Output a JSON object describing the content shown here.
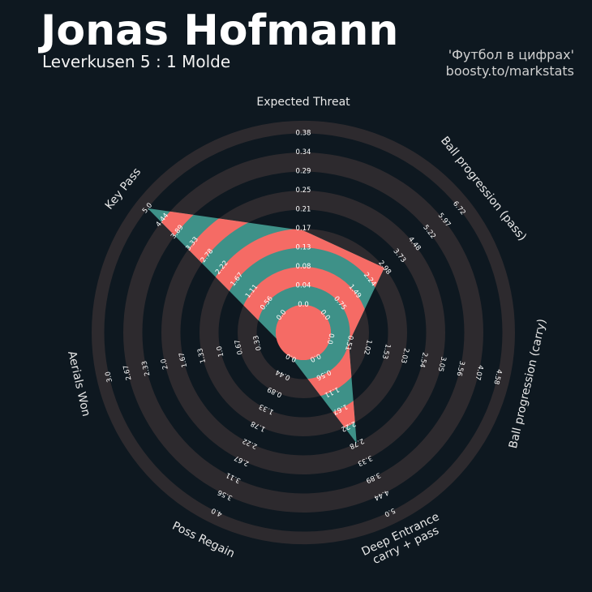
{
  "header": {
    "title": "Jonas Hofmann",
    "subtitle": "Leverkusen 5 : 1 Molde",
    "credit_line1": "'Футбол в цифрах'",
    "credit_line2": "boosty.to/markstats"
  },
  "colors": {
    "background": "#0e1820",
    "ring_band": "#2d2a2e",
    "fill_teal": "#3e9188",
    "fill_coral": "#f56b65",
    "axis_label": "#e8e8e8",
    "tick_label": "#ffffff"
  },
  "chart_data": {
    "type": "radar",
    "title": "",
    "series": [
      {
        "name": "",
        "values": [
          0.165,
          2.98,
          0.51,
          2.78,
          0.0,
          0.0,
          5.0
        ]
      }
    ],
    "axes": [
      {
        "name": "Expected Threat",
        "label_lines": [
          "Expected Threat"
        ],
        "ticks": [
          "0.0",
          "0.04",
          "0.08",
          "0.13",
          "0.17",
          "0.21",
          "0.25",
          "0.29",
          "0.34",
          "0.38"
        ],
        "range": [
          0.0,
          0.38
        ]
      },
      {
        "name": "Ball progression (pass)",
        "label_lines": [
          "Ball progression (pass)"
        ],
        "ticks": [
          "0.0",
          "0.75",
          "1.49",
          "2.24",
          "2.98",
          "3.73",
          "4.48",
          "5.22",
          "5.97",
          "6.72"
        ],
        "range": [
          0.0,
          6.72
        ]
      },
      {
        "name": "Ball progression (carry)",
        "label_lines": [
          "Ball progression (carry)"
        ],
        "ticks": [
          "0.0",
          "0.51",
          "1.02",
          "1.53",
          "2.03",
          "2.54",
          "3.05",
          "3.56",
          "4.07",
          "4.58"
        ],
        "range": [
          0.0,
          4.58
        ]
      },
      {
        "name": "Deep Entrance carry + pass",
        "label_lines": [
          "Deep Entrance",
          "carry + pass"
        ],
        "ticks": [
          "0.0",
          "0.56",
          "1.11",
          "1.67",
          "2.22",
          "2.78",
          "3.33",
          "3.89",
          "4.44",
          "5.0"
        ],
        "range": [
          0.0,
          5.0
        ]
      },
      {
        "name": "Poss Regain",
        "label_lines": [
          "Poss Regain"
        ],
        "ticks": [
          "0.0",
          "0.44",
          "0.89",
          "1.33",
          "1.78",
          "2.22",
          "2.67",
          "3.11",
          "3.56",
          "4.0"
        ],
        "range": [
          0.0,
          4.0
        ]
      },
      {
        "name": "Aerials Won",
        "label_lines": [
          "Aerials Won"
        ],
        "ticks": [
          "0.33",
          "0.67",
          "1.0",
          "1.33",
          "1.67",
          "2.0",
          "2.33",
          "2.67",
          "3.0"
        ],
        "range": [
          0.0,
          3.0
        ]
      },
      {
        "name": "Key Pass",
        "label_lines": [
          "Key Pass"
        ],
        "ticks": [
          "0.0",
          "0.56",
          "1.11",
          "1.67",
          "2.22",
          "2.78",
          "3.33",
          "3.89",
          "4.44",
          "5.0"
        ],
        "range": [
          0.0,
          5.0
        ]
      }
    ]
  }
}
